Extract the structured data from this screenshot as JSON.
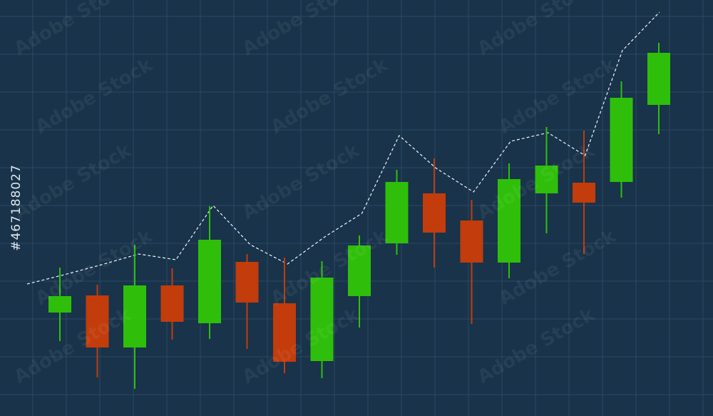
{
  "watermark": "Adobe Stock",
  "stock_id": "#467188027",
  "colors": {
    "background": "#18334a",
    "grid": "#2c4a63",
    "bullish": "#2fbf0a",
    "bearish": "#c23c0c",
    "trend_line": "#ffffff"
  },
  "chart_data": {
    "type": "candlestick",
    "title": "",
    "xlabel": "",
    "ylabel": "",
    "grid": true,
    "legend": "none",
    "ylim": [
      0,
      583
    ],
    "candles": [
      {
        "open": 145,
        "close": 168,
        "high": 208,
        "low": 105
      },
      {
        "open": 169,
        "close": 96,
        "high": 184,
        "low": 54
      },
      {
        "open": 96,
        "close": 183,
        "high": 240,
        "low": 38
      },
      {
        "open": 183,
        "close": 132,
        "high": 207,
        "low": 107
      },
      {
        "open": 130,
        "close": 247,
        "high": 294,
        "low": 108
      },
      {
        "open": 216,
        "close": 159,
        "high": 227,
        "low": 94
      },
      {
        "open": 158,
        "close": 76,
        "high": 222,
        "low": 60
      },
      {
        "open": 77,
        "close": 194,
        "high": 217,
        "low": 53
      },
      {
        "open": 168,
        "close": 239,
        "high": 253,
        "low": 124
      },
      {
        "open": 242,
        "close": 328,
        "high": 345,
        "low": 226
      },
      {
        "open": 312,
        "close": 257,
        "high": 361,
        "low": 208
      },
      {
        "open": 274,
        "close": 215,
        "high": 303,
        "low": 129
      },
      {
        "open": 215,
        "close": 332,
        "high": 354,
        "low": 193
      },
      {
        "open": 312,
        "close": 351,
        "high": 405,
        "low": 256
      },
      {
        "open": 327,
        "close": 299,
        "high": 400,
        "low": 227
      },
      {
        "open": 328,
        "close": 446,
        "high": 469,
        "low": 306
      },
      {
        "open": 436,
        "close": 509,
        "high": 523,
        "low": 395
      }
    ],
    "trend": [
      185,
      198,
      212,
      227,
      219,
      295,
      240,
      213,
      251,
      284,
      393,
      347,
      314,
      385,
      397,
      365,
      512,
      566
    ]
  }
}
